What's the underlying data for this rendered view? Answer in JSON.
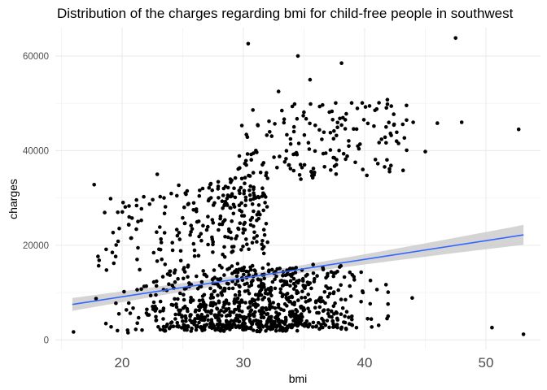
{
  "chart_data": {
    "type": "scatter",
    "title": "Distribution of the charges regarding bmi for child-free people in southwest",
    "xlabel": "bmi",
    "ylabel": "charges",
    "xlim": [
      14.5,
      54.5
    ],
    "ylim": [
      -2000,
      66000
    ],
    "xticks": [
      20,
      30,
      40,
      50
    ],
    "yticks": [
      0,
      20000,
      40000,
      60000
    ],
    "xtick_labels": [
      "20",
      "30",
      "40",
      "50"
    ],
    "ytick_labels": [
      "0",
      "20000",
      "40000",
      "60000"
    ],
    "grid": true,
    "point_count": 1300,
    "highlighted_points": [
      {
        "x": 30.4,
        "y": 62600
      },
      {
        "x": 34.5,
        "y": 60000
      },
      {
        "x": 47.5,
        "y": 63800
      },
      {
        "x": 38.1,
        "y": 58500
      },
      {
        "x": 35.5,
        "y": 55000
      },
      {
        "x": 32.9,
        "y": 52500
      },
      {
        "x": 52.7,
        "y": 44500
      },
      {
        "x": 48.0,
        "y": 46000
      },
      {
        "x": 46.0,
        "y": 45800
      },
      {
        "x": 17.7,
        "y": 32800
      },
      {
        "x": 22.9,
        "y": 35000
      },
      {
        "x": 53.1,
        "y": 1200
      },
      {
        "x": 50.5,
        "y": 2600
      },
      {
        "x": 45.0,
        "y": 39800
      },
      {
        "x": 44.0,
        "y": 46000
      },
      {
        "x": 41.0,
        "y": 48800
      },
      {
        "x": 42.4,
        "y": 47700
      },
      {
        "x": 16.0,
        "y": 1700
      }
    ],
    "trend": {
      "method": "linear",
      "x": [
        15.9,
        53.1
      ],
      "y": [
        7500,
        22200
      ],
      "ci_lower": [
        5800,
        20100
      ],
      "ci_upper": [
        9300,
        24300
      ]
    },
    "colors": {
      "points": "#000000",
      "trend_line": "#3366ff",
      "ci_band": "#cccccc",
      "grid": "#ebebeb",
      "tick_text": "#4d4d4d"
    }
  }
}
